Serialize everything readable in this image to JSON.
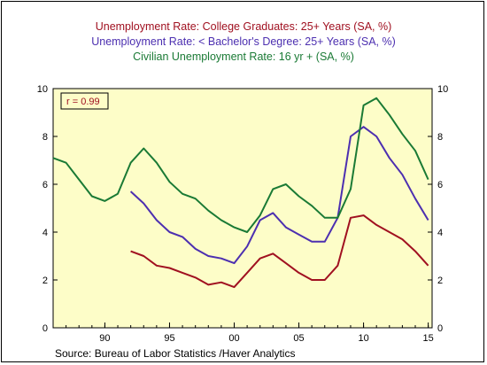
{
  "chart_data": {
    "type": "line",
    "titles": [
      "Unemployment Rate: College Graduates: 25+ Years (SA, %)",
      "Unemployment Rate: < Bachelor's Degree: 25+ Years (SA, %)",
      "Civilian Unemployment Rate: 16 yr + (SA, %)"
    ],
    "annotation": "r = 0.99",
    "source": "Source:  Bureau of Labor Statistics /Haver Analytics",
    "xlim": [
      1986,
      2015.3
    ],
    "ylim": [
      0,
      10
    ],
    "y_ticks": [
      0,
      2,
      4,
      6,
      8,
      10
    ],
    "x_ticks": [
      {
        "value": 1990,
        "label": "90"
      },
      {
        "value": 1995,
        "label": "95"
      },
      {
        "value": 2000,
        "label": "00"
      },
      {
        "value": 2005,
        "label": "05"
      },
      {
        "value": 2010,
        "label": "10"
      },
      {
        "value": 2015,
        "label": "15"
      }
    ],
    "plot_background": "#fdfdc8",
    "series": [
      {
        "color": "#a01020",
        "x": [
          1992,
          1993,
          1994,
          1995,
          1996,
          1997,
          1998,
          1999,
          2000,
          2001,
          2002,
          2003,
          2004,
          2005,
          2006,
          2007,
          2008,
          2009,
          2010,
          2011,
          2012,
          2013,
          2014,
          2015
        ],
        "y": [
          3.2,
          3.0,
          2.6,
          2.5,
          2.3,
          2.1,
          1.8,
          1.9,
          1.7,
          2.3,
          2.9,
          3.1,
          2.7,
          2.3,
          2.0,
          2.0,
          2.6,
          4.6,
          4.7,
          4.3,
          4.0,
          3.7,
          3.2,
          2.6
        ]
      },
      {
        "color": "#4c2fb0",
        "x": [
          1992,
          1993,
          1994,
          1995,
          1996,
          1997,
          1998,
          1999,
          2000,
          2001,
          2002,
          2003,
          2004,
          2005,
          2006,
          2007,
          2008,
          2009,
          2010,
          2011,
          2012,
          2013,
          2014,
          2015
        ],
        "y": [
          5.7,
          5.2,
          4.5,
          4.0,
          3.8,
          3.3,
          3.0,
          2.9,
          2.7,
          3.4,
          4.5,
          4.8,
          4.2,
          3.9,
          3.6,
          3.6,
          4.6,
          8.0,
          8.4,
          8.0,
          7.1,
          6.4,
          5.4,
          4.5
        ]
      },
      {
        "color": "#1a7a35",
        "x": [
          1986,
          1987,
          1988,
          1989,
          1990,
          1991,
          1992,
          1993,
          1994,
          1995,
          1996,
          1997,
          1998,
          1999,
          2000,
          2001,
          2002,
          2003,
          2004,
          2005,
          2006,
          2007,
          2008,
          2009,
          2010,
          2011,
          2012,
          2013,
          2014,
          2015
        ],
        "y": [
          7.1,
          6.9,
          6.2,
          5.5,
          5.3,
          5.6,
          6.9,
          7.5,
          6.9,
          6.1,
          5.6,
          5.4,
          4.9,
          4.5,
          4.2,
          4.0,
          4.7,
          5.8,
          6.0,
          5.5,
          5.1,
          4.6,
          4.6,
          5.8,
          9.3,
          9.6,
          8.9,
          8.1,
          7.4,
          6.2
        ]
      }
    ]
  },
  "title_colors": [
    "#a01020",
    "#4c2fb0",
    "#1a7a35"
  ]
}
